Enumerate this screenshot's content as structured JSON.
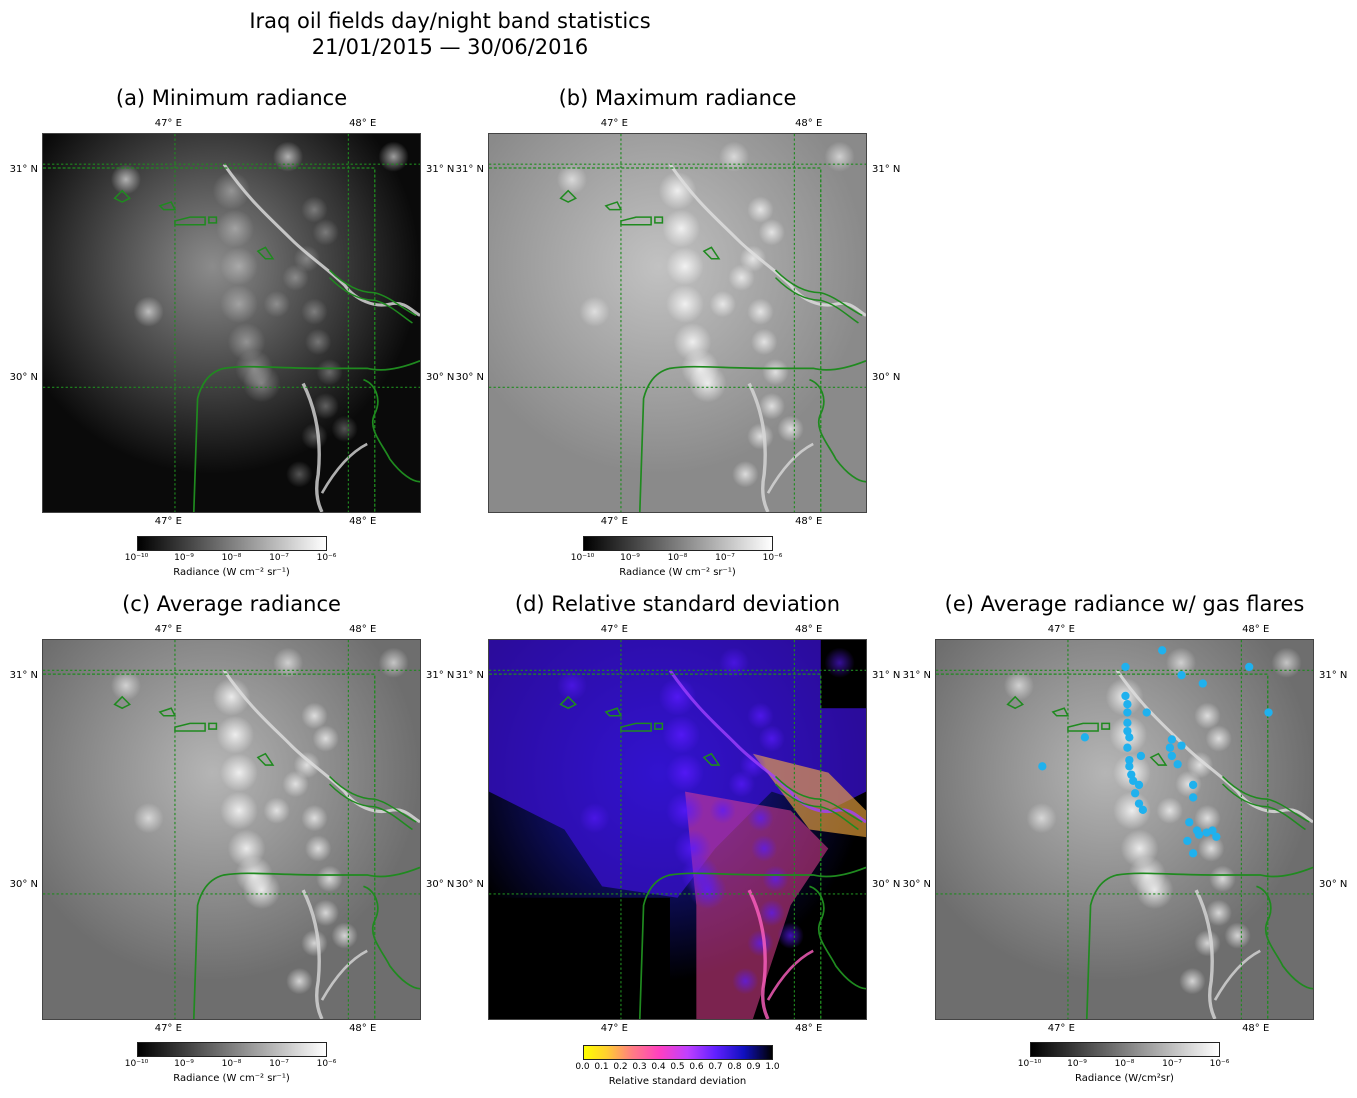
{
  "figure": {
    "title_line1": "Iraq oil fields day/night band statistics",
    "title_line2": "21/01/2015 — 30/06/2016"
  },
  "chart_data": [
    {
      "type": "heatmap",
      "id": "a",
      "title": "(a) Minimum radiance",
      "x_ticks": [
        "47° E",
        "48° E"
      ],
      "y_ticks": [
        "31° N",
        "30° N"
      ],
      "colormap": "gray",
      "colorbar": {
        "label": "Radiance (W cm⁻² sr⁻¹)",
        "ticks": [
          "10⁻¹⁰",
          "10⁻⁹",
          "10⁻⁸",
          "10⁻⁷",
          "10⁻⁶"
        ],
        "range": [
          1e-10,
          1e-06
        ],
        "scale": "log"
      }
    },
    {
      "type": "heatmap",
      "id": "b",
      "title": "(b) Maximum radiance",
      "x_ticks": [
        "47° E",
        "48° E"
      ],
      "y_ticks": [
        "31° N",
        "30° N"
      ],
      "colormap": "gray",
      "colorbar": {
        "label": "Radiance (W cm⁻² sr⁻¹)",
        "ticks": [
          "10⁻¹⁰",
          "10⁻⁹",
          "10⁻⁸",
          "10⁻⁷",
          "10⁻⁶"
        ],
        "range": [
          1e-10,
          1e-06
        ],
        "scale": "log"
      }
    },
    {
      "type": "heatmap",
      "id": "c",
      "title": "(c) Average radiance",
      "x_ticks": [
        "47° E",
        "48° E"
      ],
      "y_ticks": [
        "31° N",
        "30° N"
      ],
      "colormap": "gray",
      "colorbar": {
        "label": "Radiance (W cm⁻² sr⁻¹)",
        "ticks": [
          "10⁻¹⁰",
          "10⁻⁹",
          "10⁻⁸",
          "10⁻⁷",
          "10⁻⁶"
        ],
        "range": [
          1e-10,
          1e-06
        ],
        "scale": "log"
      }
    },
    {
      "type": "heatmap",
      "id": "d",
      "title": "(d) Relative standard deviation",
      "x_ticks": [
        "47° E",
        "48° E"
      ],
      "y_ticks": [
        "31° N",
        "30° N"
      ],
      "colormap": "gnuplot2_r",
      "colorbar": {
        "label": "Relative standard deviation",
        "ticks": [
          "0.0",
          "0.1",
          "0.2",
          "0.3",
          "0.4",
          "0.5",
          "0.6",
          "0.7",
          "0.8",
          "0.9",
          "1.0"
        ],
        "range": [
          0,
          1
        ],
        "scale": "linear"
      }
    },
    {
      "type": "heatmap",
      "id": "e",
      "title": "(e) Average radiance w/ gas flares",
      "x_ticks": [
        "47° E",
        "48° E"
      ],
      "y_ticks": [
        "31° N",
        "30° N"
      ],
      "colormap": "gray",
      "marker_color": "#1fb1ee",
      "gas_flares": [
        [
          47.52,
          31.13
        ],
        [
          47.62,
          31.01
        ],
        [
          47.33,
          31.05
        ],
        [
          47.97,
          31.05
        ],
        [
          47.73,
          30.97
        ],
        [
          47.33,
          30.91
        ],
        [
          47.34,
          30.87
        ],
        [
          47.34,
          30.83
        ],
        [
          47.44,
          30.83
        ],
        [
          48.07,
          30.83
        ],
        [
          47.34,
          30.78
        ],
        [
          47.34,
          30.74
        ],
        [
          47.12,
          30.71
        ],
        [
          47.35,
          30.71
        ],
        [
          47.57,
          30.7
        ],
        [
          47.56,
          30.66
        ],
        [
          47.62,
          30.67
        ],
        [
          47.34,
          30.66
        ],
        [
          47.41,
          30.62
        ],
        [
          47.57,
          30.62
        ],
        [
          47.35,
          30.6
        ],
        [
          47.6,
          30.58
        ],
        [
          46.9,
          30.57
        ],
        [
          47.35,
          30.57
        ],
        [
          47.36,
          30.53
        ],
        [
          47.37,
          30.5
        ],
        [
          47.4,
          30.48
        ],
        [
          47.68,
          30.48
        ],
        [
          47.38,
          30.44
        ],
        [
          47.68,
          30.42
        ],
        [
          47.4,
          30.39
        ],
        [
          47.42,
          30.36
        ],
        [
          47.66,
          30.3
        ],
        [
          47.7,
          30.26
        ],
        [
          47.75,
          30.25
        ],
        [
          47.71,
          30.24
        ],
        [
          47.78,
          30.26
        ],
        [
          47.8,
          30.23
        ],
        [
          47.65,
          30.21
        ],
        [
          47.68,
          30.15
        ]
      ],
      "colorbar": {
        "label": "Radiance (W/cm²sr)",
        "ticks": [
          "10⁻¹⁰",
          "10⁻⁹",
          "10⁻⁸",
          "10⁻⁷",
          "10⁻⁶"
        ],
        "range": [
          1e-10,
          1e-06
        ],
        "scale": "log"
      }
    }
  ]
}
